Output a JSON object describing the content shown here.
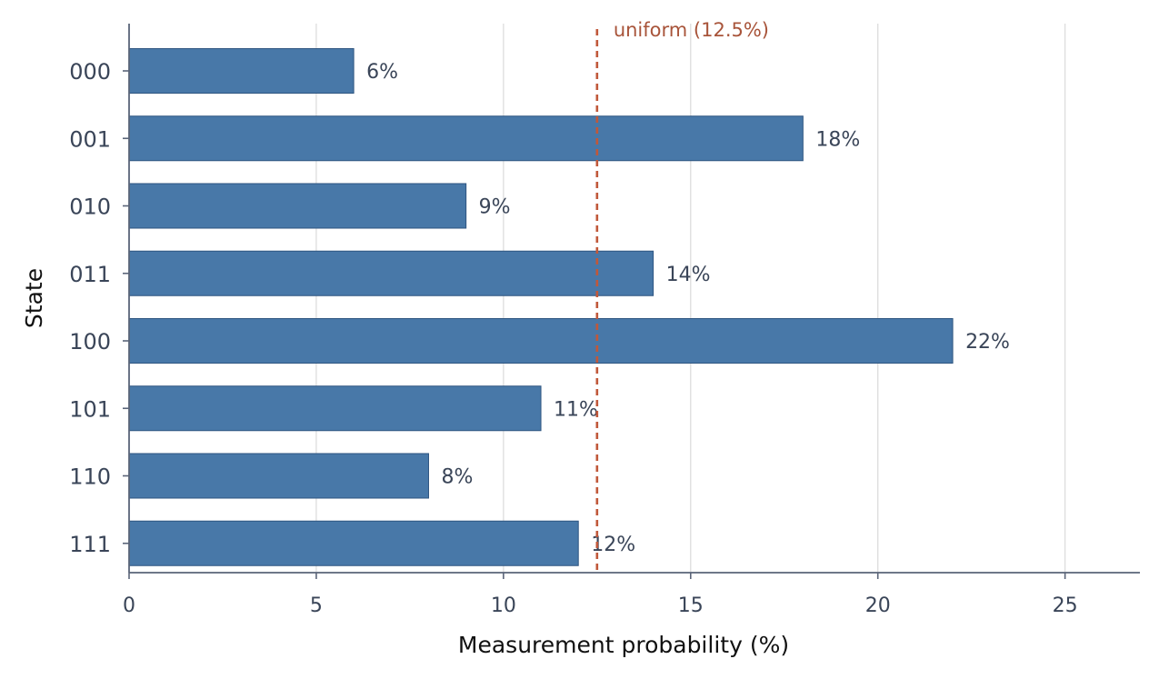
{
  "chart_data": {
    "type": "bar",
    "orientation": "horizontal",
    "categories": [
      "000",
      "001",
      "010",
      "011",
      "100",
      "101",
      "110",
      "111"
    ],
    "values": [
      6,
      18,
      9,
      14,
      22,
      11,
      8,
      12
    ],
    "data_labels": [
      "6%",
      "18%",
      "9%",
      "14%",
      "22%",
      "11%",
      "8%",
      "12%"
    ],
    "xlabel": "Measurement probability (%)",
    "ylabel": "State",
    "xlim": [
      0,
      27
    ],
    "xticks": [
      0,
      5,
      10,
      15,
      20,
      25
    ],
    "grid": "vertical",
    "reference_line": {
      "value": 12.5,
      "label": "uniform (12.5%)",
      "style": "dashed"
    },
    "colors": {
      "bar": "#4878a8",
      "bar_edge": "#2e5580",
      "reference": "#c0583a",
      "grid": "#dddddd",
      "axis": "#5a6478"
    }
  }
}
